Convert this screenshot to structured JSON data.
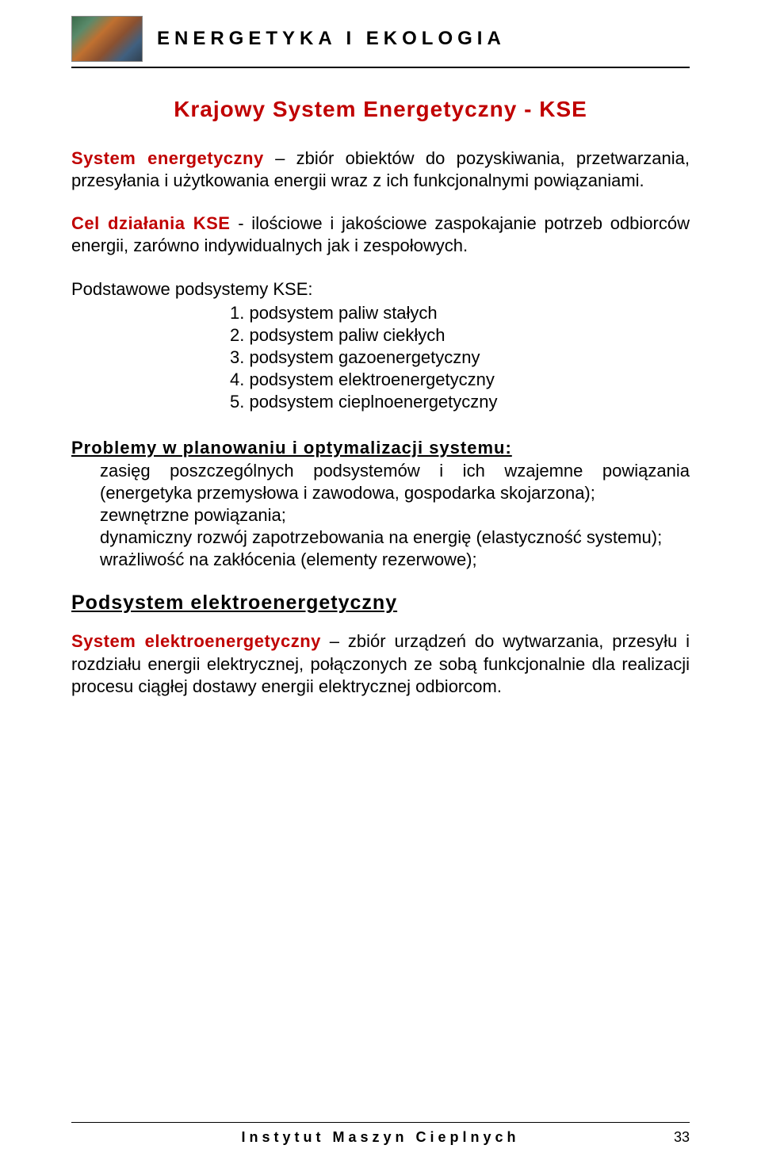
{
  "header": {
    "title": "ENERGETYKA I EKOLOGIA"
  },
  "main_title": "Krajowy System Energetyczny - KSE",
  "p1_term": "System energetyczny",
  "p1_rest": " – zbiór obiektów do pozyskiwania, przetwarzania, przesyłania i użytkowania energii wraz z ich funkcjonalnymi powiązaniami.",
  "p2_term": "Cel działania KSE",
  "p2_rest": " - ilościowe i jakościowe zaspokajanie potrzeb odbiorców energii, zarówno indywidualnych jak i zespołowych.",
  "subsystems_intro": "Podstawowe podsystemy KSE:",
  "subsystems": [
    "1. podsystem paliw stałych",
    "2. podsystem paliw ciekłych",
    "3. podsystem gazoenergetyczny",
    "4. podsystem elektroenergetyczny",
    "5. podsystem cieplnoenergetyczny"
  ],
  "problems_heading": "Problemy w planowaniu i optymalizacji systemu:",
  "problems": [
    "zasięg poszczególnych podsystemów i ich wzajemne powiązania (energetyka przemysłowa i zawodowa, gospodarka skojarzona);",
    "zewnętrzne powiązania;",
    "dynamiczny rozwój zapotrzebowania na energię (elastyczność systemu);",
    "wrażliwość na zakłócenia (elementy rezerwowe);"
  ],
  "section2_heading": "Podsystem elektroenergetyczny",
  "p3_term": "System elektroenergetyczny",
  "p3_rest": " – zbiór urządzeń do wytwarzania, przesyłu i rozdziału energii elektrycznej, połączonych ze sobą funkcjonalnie dla realizacji procesu ciągłej dostawy energii elektrycznej odbiorcom.",
  "footer": {
    "org": "Instytut Maszyn Cieplnych",
    "page": "33"
  },
  "colors": {
    "accent": "#c00000",
    "text": "#000000",
    "background": "#ffffff"
  }
}
